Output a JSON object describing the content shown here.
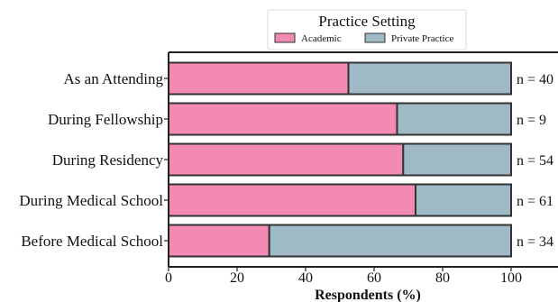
{
  "chart_data": {
    "type": "bar",
    "orientation": "horizontal",
    "stacked": true,
    "percent": true,
    "categories": [
      "As an Attending",
      "During Fellowship",
      "During Residency",
      "During Medical School",
      "Before Medical School"
    ],
    "series": [
      {
        "name": "Academic",
        "color": "#f28ab4",
        "values": [
          52.5,
          66.7,
          68.5,
          72.1,
          29.4
        ]
      },
      {
        "name": "Private Practice",
        "color": "#9fbac6",
        "values": [
          47.5,
          33.3,
          31.5,
          27.9,
          70.6
        ]
      }
    ],
    "n_labels": [
      "n = 40",
      "n = 9",
      "n = 54",
      "n = 61",
      "n = 34"
    ],
    "legend": {
      "title": "Practice Setting",
      "placement": "top-center",
      "entries": [
        "Academic",
        "Private Practice"
      ]
    },
    "xlabel": "Respondents (%)",
    "ylabel": "",
    "xlim": [
      0,
      100
    ],
    "xticks": [
      0,
      20,
      40,
      60,
      80,
      100
    ],
    "grid": false
  }
}
